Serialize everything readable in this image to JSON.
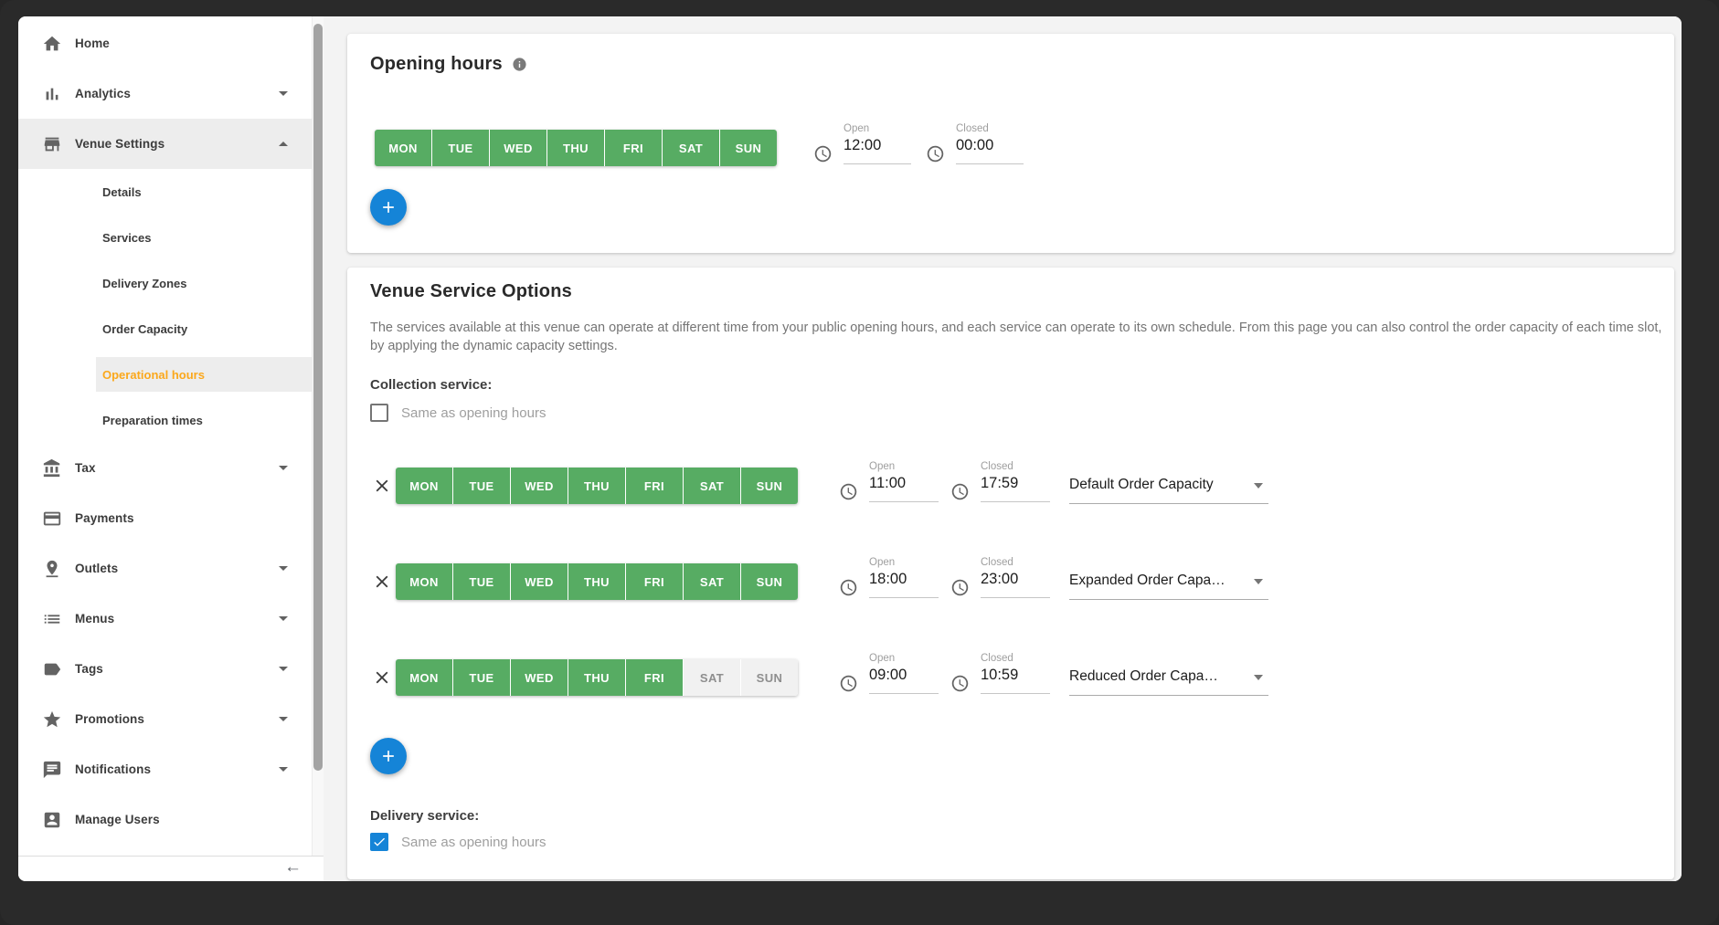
{
  "colors": {
    "green": "#57ac63",
    "blue": "#1584d7",
    "orange": "#fba81c"
  },
  "sidebar": {
    "items": [
      {
        "label": "Home",
        "icon": "home-icon",
        "type": "main",
        "chevron": ""
      },
      {
        "label": "Analytics",
        "icon": "analytics-icon",
        "type": "main",
        "chevron": "down"
      },
      {
        "label": "Venue Settings",
        "icon": "venue-settings-icon",
        "type": "main",
        "chevron": "up",
        "active": true
      },
      {
        "label": "Details",
        "type": "sub"
      },
      {
        "label": "Services",
        "type": "sub"
      },
      {
        "label": "Delivery Zones",
        "type": "sub"
      },
      {
        "label": "Order Capacity",
        "type": "sub"
      },
      {
        "label": "Operational hours",
        "type": "sub",
        "selected": true
      },
      {
        "label": "Preparation times",
        "type": "sub"
      },
      {
        "label": "Tax",
        "icon": "tax-icon",
        "type": "main",
        "chevron": "down"
      },
      {
        "label": "Payments",
        "icon": "payments-icon",
        "type": "main",
        "chevron": ""
      },
      {
        "label": "Outlets",
        "icon": "outlets-icon",
        "type": "main",
        "chevron": "down"
      },
      {
        "label": "Menus",
        "icon": "menus-icon",
        "type": "main",
        "chevron": "down"
      },
      {
        "label": "Tags",
        "icon": "tags-icon",
        "type": "main",
        "chevron": "down"
      },
      {
        "label": "Promotions",
        "icon": "promotions-icon",
        "type": "main",
        "chevron": "down"
      },
      {
        "label": "Notifications",
        "icon": "notifications-icon",
        "type": "main",
        "chevron": "down"
      },
      {
        "label": "Manage Users",
        "icon": "manage-users-icon",
        "type": "main",
        "chevron": ""
      }
    ],
    "collapse_arrow": "←"
  },
  "opening_hours": {
    "title": "Opening hours",
    "days": [
      "MON",
      "TUE",
      "WED",
      "THU",
      "FRI",
      "SAT",
      "SUN"
    ],
    "selected_days": [
      true,
      true,
      true,
      true,
      true,
      true,
      true
    ],
    "open_label": "Open",
    "open_value": "12:00",
    "closed_label": "Closed",
    "closed_value": "00:00"
  },
  "service_options": {
    "title": "Venue Service Options",
    "description": "The services available at this venue can operate at different time from your public opening hours, and each service can operate to its own schedule. From this page you can also control the order capacity of each time slot, by applying the dynamic capacity settings.",
    "collection_label": "Collection service:",
    "collection_same_as_label": "Same as opening hours",
    "collection_same_as_checked": false,
    "rows": [
      {
        "days": [
          "MON",
          "TUE",
          "WED",
          "THU",
          "FRI",
          "SAT",
          "SUN"
        ],
        "selected_days": [
          true,
          true,
          true,
          true,
          true,
          true,
          true
        ],
        "open_label": "Open",
        "open": "11:00",
        "closed_label": "Closed",
        "closed": "17:59",
        "capacity": "Default Order Capacity"
      },
      {
        "days": [
          "MON",
          "TUE",
          "WED",
          "THU",
          "FRI",
          "SAT",
          "SUN"
        ],
        "selected_days": [
          true,
          true,
          true,
          true,
          true,
          true,
          true
        ],
        "open_label": "Open",
        "open": "18:00",
        "closed_label": "Closed",
        "closed": "23:00",
        "capacity": "Expanded Order Capa…"
      },
      {
        "days": [
          "MON",
          "TUE",
          "WED",
          "THU",
          "FRI",
          "SAT",
          "SUN"
        ],
        "selected_days": [
          true,
          true,
          true,
          true,
          true,
          false,
          false
        ],
        "open_label": "Open",
        "open": "09:00",
        "closed_label": "Closed",
        "closed": "10:59",
        "capacity": "Reduced Order Capa…"
      }
    ],
    "delivery_label": "Delivery service:",
    "delivery_same_as_label": "Same as opening hours",
    "delivery_same_as_checked": true
  }
}
